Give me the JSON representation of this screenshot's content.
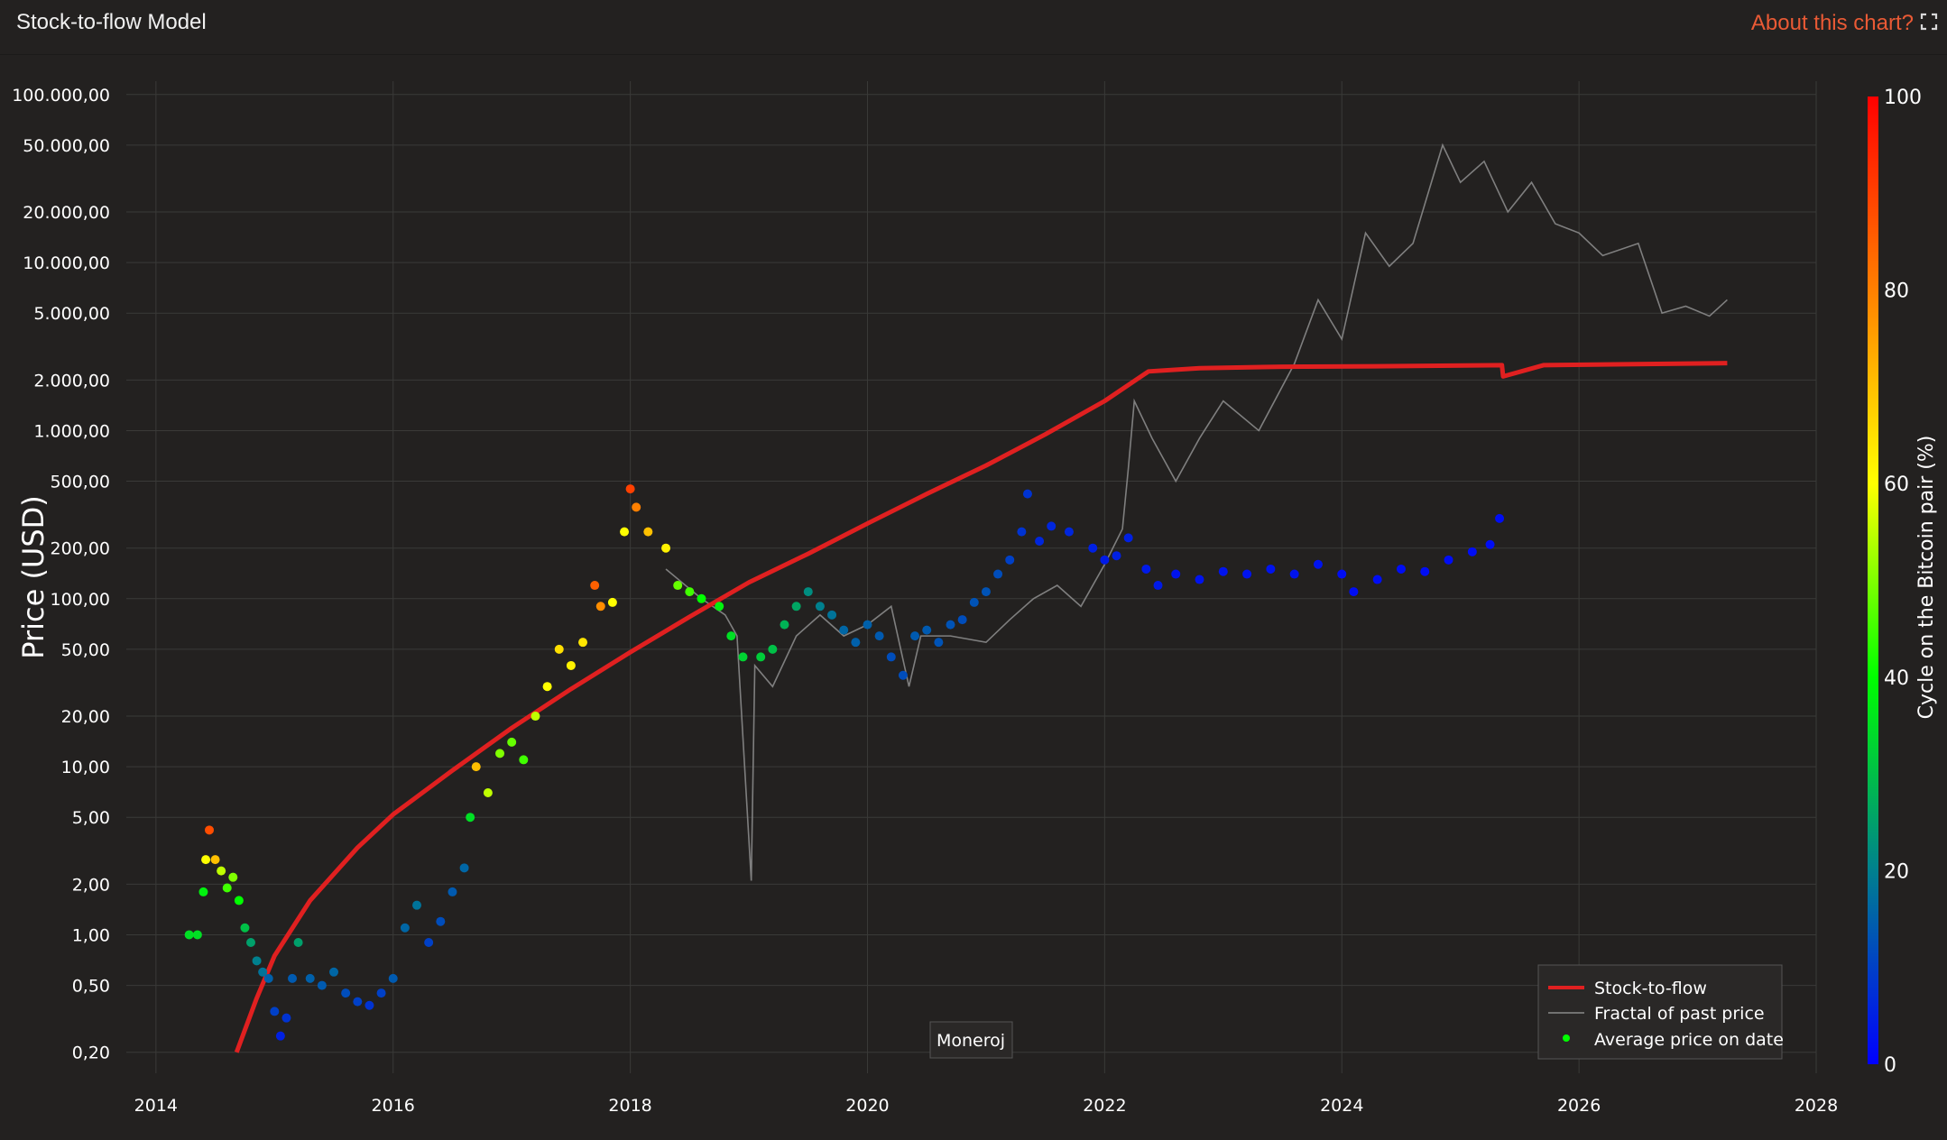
{
  "header": {
    "title": "Stock-to-flow Model",
    "about_link": "About this chart?",
    "expand_icon": "expand-icon"
  },
  "watermark": "Moneroj",
  "colors": {
    "background": "#232120",
    "s2f": "#e02020",
    "fractal": "#8a8a8a",
    "grid": "#3a3a38",
    "accent": "#ea5a35"
  },
  "chart_data": {
    "type": "scatter",
    "title": "",
    "xlabel": "",
    "ylabel": "Price (USD)",
    "y_scale": "log",
    "ylim": [
      0.15,
      120000
    ],
    "xlim": [
      "2013-10-01",
      "2028-01-01"
    ],
    "x_ticks": [
      "2014",
      "2016",
      "2018",
      "2020",
      "2022",
      "2024",
      "2026",
      "2028"
    ],
    "y_ticks": [
      {
        "value": 100000,
        "label": "100.000,00"
      },
      {
        "value": 50000,
        "label": "50.000,00"
      },
      {
        "value": 20000,
        "label": "20.000,00"
      },
      {
        "value": 10000,
        "label": "10.000,00"
      },
      {
        "value": 5000,
        "label": "5.000,00"
      },
      {
        "value": 2000,
        "label": "2.000,00"
      },
      {
        "value": 1000,
        "label": "1.000,00"
      },
      {
        "value": 500,
        "label": "500,00"
      },
      {
        "value": 200,
        "label": "200,00"
      },
      {
        "value": 100,
        "label": "100,00"
      },
      {
        "value": 50,
        "label": "50,00"
      },
      {
        "value": 20,
        "label": "20,00"
      },
      {
        "value": 10,
        "label": "10,00"
      },
      {
        "value": 5,
        "label": "5,00"
      },
      {
        "value": 2,
        "label": "2,00"
      },
      {
        "value": 1,
        "label": "1,00"
      },
      {
        "value": 0.5,
        "label": "0,50"
      },
      {
        "value": 0.2,
        "label": "0,20"
      }
    ],
    "grid": true,
    "legend_position": "bottom-right",
    "colorbar": {
      "title": "Cycle on the Bitcoin pair (%)",
      "range": [
        0,
        100
      ],
      "ticks": [
        "0",
        "20",
        "40",
        "60",
        "80",
        "100"
      ],
      "colors": [
        "#0000ff",
        "#00808e",
        "#00ff00",
        "#ffff00",
        "#ff8000",
        "#ff0000"
      ]
    },
    "series": [
      {
        "name": "Stock-to-flow",
        "kind": "line",
        "points": [
          [
            2014.68,
            0.2
          ],
          [
            2014.85,
            0.42
          ],
          [
            2015.0,
            0.75
          ],
          [
            2015.3,
            1.6
          ],
          [
            2015.7,
            3.3
          ],
          [
            2016.0,
            5.2
          ],
          [
            2016.5,
            9.5
          ],
          [
            2017.0,
            17
          ],
          [
            2017.5,
            29
          ],
          [
            2018.0,
            48
          ],
          [
            2018.5,
            78
          ],
          [
            2019.0,
            125
          ],
          [
            2019.5,
            185
          ],
          [
            2020.0,
            280
          ],
          [
            2020.5,
            420
          ],
          [
            2021.0,
            620
          ],
          [
            2021.5,
            950
          ],
          [
            2022.0,
            1500
          ],
          [
            2022.37,
            2250
          ],
          [
            2022.8,
            2350
          ],
          [
            2023.5,
            2400
          ],
          [
            2024.5,
            2420
          ],
          [
            2025.35,
            2450
          ],
          [
            2025.36,
            2100
          ],
          [
            2025.7,
            2450
          ],
          [
            2027.25,
            2520
          ]
        ]
      },
      {
        "name": "Fractal of past price",
        "kind": "line",
        "points": [
          [
            2018.3,
            150
          ],
          [
            2018.6,
            100
          ],
          [
            2018.8,
            80
          ],
          [
            2018.9,
            60
          ],
          [
            2019.02,
            2.1
          ],
          [
            2019.05,
            40
          ],
          [
            2019.2,
            30
          ],
          [
            2019.4,
            60
          ],
          [
            2019.6,
            80
          ],
          [
            2019.8,
            60
          ],
          [
            2020.0,
            70
          ],
          [
            2020.2,
            90
          ],
          [
            2020.35,
            30
          ],
          [
            2020.45,
            60
          ],
          [
            2020.7,
            60
          ],
          [
            2021.0,
            55
          ],
          [
            2021.2,
            75
          ],
          [
            2021.4,
            100
          ],
          [
            2021.6,
            120
          ],
          [
            2021.8,
            90
          ],
          [
            2022.0,
            160
          ],
          [
            2022.15,
            260
          ],
          [
            2022.2,
            600
          ],
          [
            2022.25,
            1500
          ],
          [
            2022.4,
            900
          ],
          [
            2022.6,
            500
          ],
          [
            2022.8,
            900
          ],
          [
            2023.0,
            1500
          ],
          [
            2023.3,
            1000
          ],
          [
            2023.6,
            2500
          ],
          [
            2023.8,
            6000
          ],
          [
            2024.0,
            3500
          ],
          [
            2024.2,
            15000
          ],
          [
            2024.4,
            9500
          ],
          [
            2024.6,
            13000
          ],
          [
            2024.85,
            50000
          ],
          [
            2025.0,
            30000
          ],
          [
            2025.2,
            40000
          ],
          [
            2025.4,
            20000
          ],
          [
            2025.6,
            30000
          ],
          [
            2025.8,
            17000
          ],
          [
            2026.0,
            15000
          ],
          [
            2026.2,
            11000
          ],
          [
            2026.5,
            13000
          ],
          [
            2026.7,
            5000
          ],
          [
            2026.9,
            5500
          ],
          [
            2027.1,
            4800
          ],
          [
            2027.25,
            6000
          ]
        ]
      },
      {
        "name": "Average price on date",
        "kind": "scatter",
        "points": [
          [
            2014.28,
            1.0,
            35
          ],
          [
            2014.35,
            1.0,
            35
          ],
          [
            2014.4,
            1.8,
            38
          ],
          [
            2014.42,
            2.8,
            60
          ],
          [
            2014.45,
            4.2,
            88
          ],
          [
            2014.5,
            2.8,
            70
          ],
          [
            2014.55,
            2.4,
            55
          ],
          [
            2014.6,
            1.9,
            45
          ],
          [
            2014.65,
            2.2,
            50
          ],
          [
            2014.7,
            1.6,
            40
          ],
          [
            2014.75,
            1.1,
            30
          ],
          [
            2014.8,
            0.9,
            25
          ],
          [
            2014.85,
            0.7,
            20
          ],
          [
            2014.9,
            0.6,
            18
          ],
          [
            2014.95,
            0.55,
            15
          ],
          [
            2015.0,
            0.35,
            10
          ],
          [
            2015.05,
            0.25,
            5
          ],
          [
            2015.1,
            0.32,
            8
          ],
          [
            2015.15,
            0.55,
            14
          ],
          [
            2015.2,
            0.9,
            25
          ],
          [
            2015.3,
            0.55,
            15
          ],
          [
            2015.4,
            0.5,
            14
          ],
          [
            2015.5,
            0.6,
            16
          ],
          [
            2015.6,
            0.45,
            12
          ],
          [
            2015.7,
            0.4,
            10
          ],
          [
            2015.8,
            0.38,
            8
          ],
          [
            2015.9,
            0.45,
            10
          ],
          [
            2016.0,
            0.55,
            14
          ],
          [
            2016.1,
            1.1,
            16
          ],
          [
            2016.2,
            1.5,
            18
          ],
          [
            2016.3,
            0.9,
            10
          ],
          [
            2016.4,
            1.2,
            12
          ],
          [
            2016.5,
            1.8,
            14
          ],
          [
            2016.6,
            2.5,
            16
          ],
          [
            2016.65,
            5,
            35
          ],
          [
            2016.7,
            10,
            70
          ],
          [
            2016.8,
            7,
            55
          ],
          [
            2016.9,
            12,
            50
          ],
          [
            2017.0,
            14,
            48
          ],
          [
            2017.1,
            11,
            45
          ],
          [
            2017.2,
            20,
            55
          ],
          [
            2017.3,
            30,
            60
          ],
          [
            2017.4,
            50,
            65
          ],
          [
            2017.5,
            40,
            62
          ],
          [
            2017.6,
            55,
            64
          ],
          [
            2017.7,
            120,
            85
          ],
          [
            2017.75,
            90,
            78
          ],
          [
            2017.85,
            95,
            60
          ],
          [
            2017.95,
            250,
            60
          ],
          [
            2018.0,
            450,
            90
          ],
          [
            2018.05,
            350,
            80
          ],
          [
            2018.15,
            250,
            70
          ],
          [
            2018.3,
            200,
            62
          ],
          [
            2018.4,
            120,
            48
          ],
          [
            2018.5,
            110,
            45
          ],
          [
            2018.6,
            100,
            40
          ],
          [
            2018.75,
            90,
            38
          ],
          [
            2018.85,
            60,
            35
          ],
          [
            2018.95,
            45,
            33
          ],
          [
            2019.1,
            45,
            32
          ],
          [
            2019.2,
            50,
            30
          ],
          [
            2019.3,
            70,
            28
          ],
          [
            2019.4,
            90,
            26
          ],
          [
            2019.5,
            110,
            22
          ],
          [
            2019.6,
            90,
            20
          ],
          [
            2019.7,
            80,
            18
          ],
          [
            2019.8,
            65,
            16
          ],
          [
            2019.9,
            55,
            15
          ],
          [
            2020.0,
            70,
            15
          ],
          [
            2020.1,
            60,
            14
          ],
          [
            2020.2,
            45,
            12
          ],
          [
            2020.3,
            35,
            12
          ],
          [
            2020.4,
            60,
            14
          ],
          [
            2020.5,
            65,
            14
          ],
          [
            2020.6,
            55,
            13
          ],
          [
            2020.7,
            70,
            13
          ],
          [
            2020.8,
            75,
            12
          ],
          [
            2020.9,
            95,
            13
          ],
          [
            2021.0,
            110,
            13
          ],
          [
            2021.1,
            140,
            12
          ],
          [
            2021.2,
            170,
            10
          ],
          [
            2021.3,
            250,
            8
          ],
          [
            2021.35,
            420,
            8
          ],
          [
            2021.45,
            220,
            6
          ],
          [
            2021.55,
            270,
            6
          ],
          [
            2021.7,
            250,
            6
          ],
          [
            2021.9,
            200,
            5
          ],
          [
            2022.0,
            170,
            4
          ],
          [
            2022.1,
            180,
            5
          ],
          [
            2022.2,
            230,
            5
          ],
          [
            2022.35,
            150,
            4
          ],
          [
            2022.45,
            120,
            4
          ],
          [
            2022.6,
            140,
            3
          ],
          [
            2022.8,
            130,
            3
          ],
          [
            2023.0,
            145,
            3
          ],
          [
            2023.2,
            140,
            3
          ],
          [
            2023.4,
            150,
            3
          ],
          [
            2023.6,
            140,
            3
          ],
          [
            2023.8,
            160,
            3
          ],
          [
            2024.0,
            140,
            2
          ],
          [
            2024.1,
            110,
            2
          ],
          [
            2024.3,
            130,
            2
          ],
          [
            2024.5,
            150,
            2
          ],
          [
            2024.7,
            145,
            2
          ],
          [
            2024.9,
            170,
            2
          ],
          [
            2025.1,
            190,
            2
          ],
          [
            2025.25,
            210,
            2
          ],
          [
            2025.33,
            300,
            2
          ]
        ]
      }
    ]
  }
}
